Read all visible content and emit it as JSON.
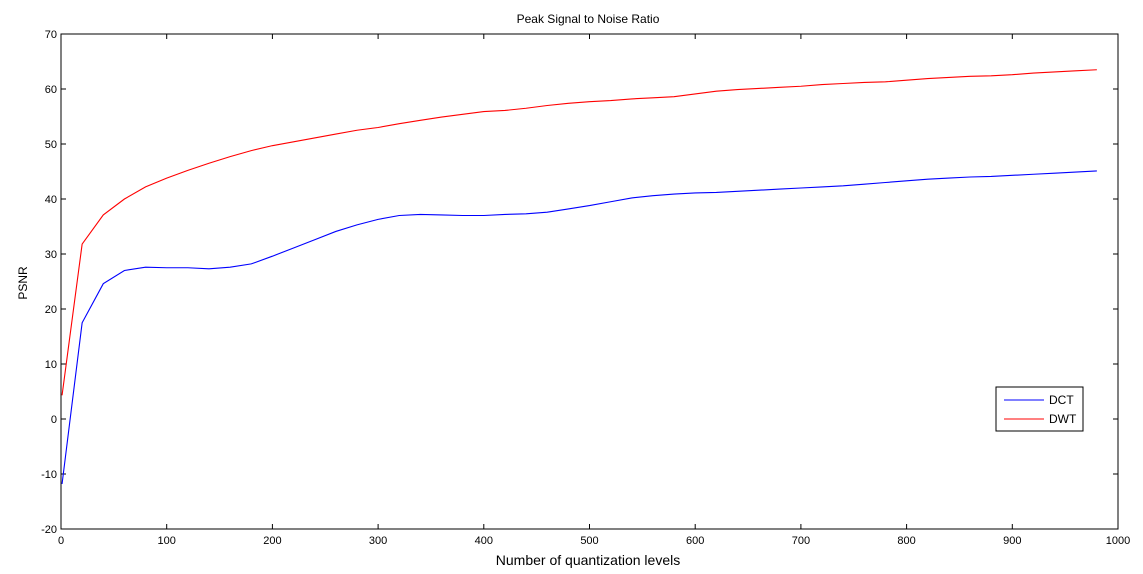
{
  "chart_data": {
    "type": "line",
    "title": "Peak Signal to Noise Ratio",
    "xlabel": "Number of quantization levels",
    "ylabel": "PSNR",
    "xlim": [
      0,
      1000
    ],
    "ylim": [
      -20,
      70
    ],
    "xticks": [
      0,
      100,
      200,
      300,
      400,
      500,
      600,
      700,
      800,
      900,
      1000
    ],
    "yticks": [
      -20,
      -10,
      0,
      10,
      20,
      30,
      40,
      50,
      60,
      70
    ],
    "grid": false,
    "legend_position": "lower-right",
    "series": [
      {
        "name": "DCT",
        "color": "#0000ff",
        "x": [
          1,
          20,
          40,
          60,
          80,
          100,
          120,
          140,
          160,
          180,
          200,
          220,
          240,
          260,
          280,
          300,
          320,
          340,
          360,
          380,
          400,
          420,
          440,
          460,
          480,
          500,
          520,
          540,
          560,
          580,
          600,
          620,
          640,
          660,
          680,
          700,
          720,
          740,
          760,
          780,
          800,
          820,
          840,
          860,
          880,
          900,
          920,
          940,
          960,
          980
        ],
        "y": [
          -11.8,
          17.5,
          24.6,
          27.0,
          27.6,
          27.5,
          27.5,
          27.3,
          27.6,
          28.2,
          29.6,
          31.1,
          32.6,
          34.1,
          35.3,
          36.3,
          37.0,
          37.2,
          37.1,
          37.0,
          37.0,
          37.2,
          37.3,
          37.6,
          38.2,
          38.8,
          39.5,
          40.2,
          40.6,
          40.9,
          41.1,
          41.2,
          41.4,
          41.6,
          41.8,
          42.0,
          42.2,
          42.4,
          42.7,
          43.0,
          43.3,
          43.6,
          43.8,
          44.0,
          44.1,
          44.3,
          44.5,
          44.7,
          44.9,
          45.1
        ]
      },
      {
        "name": "DWT",
        "color": "#ff0000",
        "x": [
          1,
          20,
          40,
          60,
          80,
          100,
          120,
          140,
          160,
          180,
          200,
          220,
          240,
          260,
          280,
          300,
          320,
          340,
          360,
          380,
          400,
          420,
          440,
          460,
          480,
          500,
          520,
          540,
          560,
          580,
          600,
          620,
          640,
          660,
          680,
          700,
          720,
          740,
          760,
          780,
          800,
          820,
          840,
          860,
          880,
          900,
          920,
          940,
          960,
          980
        ],
        "y": [
          4.3,
          31.8,
          37.1,
          40.0,
          42.2,
          43.8,
          45.2,
          46.5,
          47.7,
          48.8,
          49.7,
          50.4,
          51.1,
          51.8,
          52.5,
          53.0,
          53.7,
          54.3,
          54.9,
          55.4,
          55.9,
          56.1,
          56.5,
          57.0,
          57.4,
          57.7,
          57.9,
          58.2,
          58.4,
          58.6,
          59.1,
          59.6,
          59.9,
          60.1,
          60.3,
          60.5,
          60.8,
          61.0,
          61.2,
          61.3,
          61.6,
          61.9,
          62.1,
          62.3,
          62.4,
          62.6,
          62.9,
          63.1,
          63.3,
          63.5
        ]
      }
    ]
  }
}
